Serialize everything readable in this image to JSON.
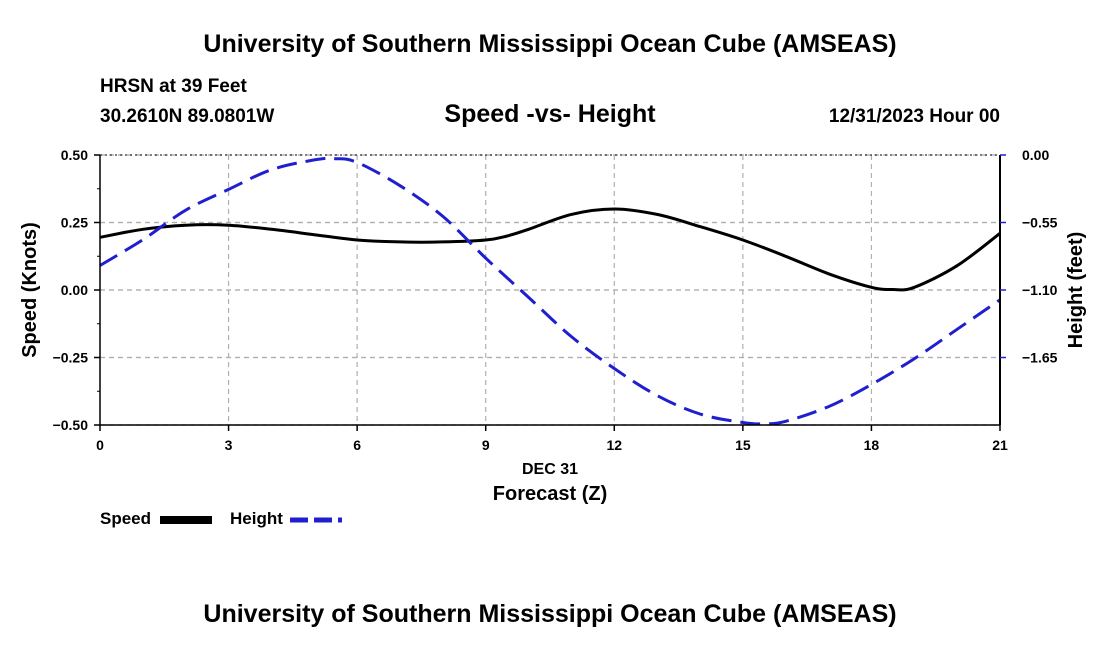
{
  "header": {
    "title": "University of Southern Mississippi Ocean Cube (AMSEAS)",
    "station": "HRSN at 39 Feet",
    "coords": "30.2610N  89.0801W",
    "subtitle": "Speed -vs- Height",
    "datetime": "12/31/2023 Hour 00"
  },
  "footer": {
    "title": "University of Southern Mississippi Ocean Cube (AMSEAS)"
  },
  "legend": {
    "speed_label": "Speed",
    "height_label": "Height"
  },
  "colors": {
    "speed": "#000000",
    "height": "#1f1fcf",
    "grid": "#b0b0b0"
  },
  "chart_data": {
    "type": "line",
    "title": "Speed -vs- Height",
    "xlabel": "Forecast (Z)",
    "xlabel_date": "DEC 31",
    "ylabel": "Speed (Knots)",
    "y2label": "Height (feet)",
    "xlim": [
      0,
      21
    ],
    "ylim": [
      -0.5,
      0.5
    ],
    "y2lim": [
      -2.2,
      0.0
    ],
    "x_ticks": [
      0,
      3,
      6,
      9,
      12,
      15,
      18,
      21
    ],
    "x_tick_labels": [
      "0",
      "3",
      "6",
      "9",
      "12",
      "15",
      "18",
      "21"
    ],
    "y_ticks": [
      0.5,
      0.25,
      0.0,
      -0.25,
      -0.5
    ],
    "y_tick_labels": [
      "0.50",
      "0.25",
      "0.00",
      "−0.25",
      "−0.50"
    ],
    "y2_ticks": [
      0.0,
      -0.55,
      -1.1,
      -1.65
    ],
    "y2_tick_labels": [
      "0.00",
      "−0.55",
      "−1.10",
      "−1.65"
    ],
    "grid": true,
    "series": [
      {
        "name": "Speed",
        "axis": "left",
        "style": "solid",
        "x": [
          0,
          1,
          2,
          3,
          4,
          5,
          6,
          7,
          8,
          9,
          9.5,
          10,
          11,
          12,
          13,
          14,
          15,
          16,
          17,
          18,
          18.5,
          19,
          20,
          21
        ],
        "values": [
          0.195,
          0.225,
          0.24,
          0.24,
          0.225,
          0.205,
          0.185,
          0.178,
          0.178,
          0.185,
          0.2,
          0.225,
          0.28,
          0.3,
          0.28,
          0.235,
          0.185,
          0.125,
          0.06,
          0.01,
          0.002,
          0.01,
          0.09,
          0.21
        ]
      },
      {
        "name": "Height",
        "axis": "right",
        "style": "dashed",
        "x": [
          0,
          1,
          2,
          3,
          4,
          5,
          5.5,
          6,
          7,
          8,
          9,
          10,
          11,
          12,
          13,
          14,
          15,
          15.5,
          16,
          17,
          18,
          19,
          20,
          21
        ],
        "values": [
          -0.9,
          -0.69,
          -0.45,
          -0.28,
          -0.12,
          -0.04,
          -0.03,
          -0.06,
          -0.25,
          -0.5,
          -0.84,
          -1.16,
          -1.48,
          -1.74,
          -1.96,
          -2.11,
          -2.18,
          -2.19,
          -2.17,
          -2.05,
          -1.87,
          -1.66,
          -1.42,
          -1.18
        ]
      }
    ]
  }
}
